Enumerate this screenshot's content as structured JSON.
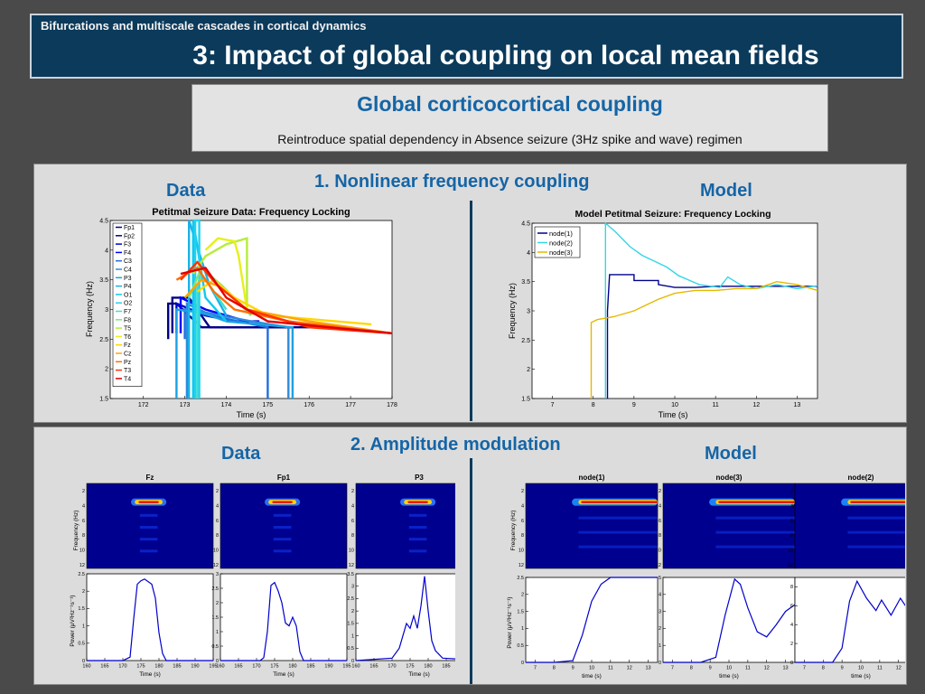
{
  "slide": {
    "kicker": "Bifurcations and multiscale cascades in cortical dynamics",
    "title": "3: Impact of global coupling on local mean fields"
  },
  "intro": {
    "heading": "Global corticocortical coupling",
    "subtext": "Reintroduce spatial dependency in Absence seizure (3Hz spike and wave) regimen"
  },
  "section1": {
    "heading": "1. Nonlinear frequency coupling",
    "data_label": "Data",
    "model_label": "Model"
  },
  "section2": {
    "heading": "2. Amplitude modulation",
    "data_label": "Data",
    "model_label": "Model"
  },
  "colors": {
    "accent": "#1565a6",
    "header_bg": "#0b3a5b",
    "spec_bg": "#00008f"
  },
  "chart_data": [
    {
      "id": "data-freq",
      "type": "line",
      "title": "Petitmal Seizure Data: Frequency Locking",
      "xlabel": "Time (s)",
      "ylabel": "Frequency (Hz)",
      "xlim": [
        171.2,
        178
      ],
      "ylim": [
        1.5,
        4.5
      ],
      "xticks": [
        172,
        173,
        174,
        175,
        176,
        177,
        178
      ],
      "yticks": [
        1.5,
        2,
        2.5,
        3,
        3.5,
        4,
        4.5
      ],
      "legend_position": "top-left",
      "series": [
        {
          "name": "Fp1",
          "color": "#000080",
          "x": [
            172.6,
            172.6,
            172.8,
            173.4,
            175.6
          ],
          "y": [
            2.5,
            3.1,
            3.1,
            2.7,
            2.7
          ]
        },
        {
          "name": "Fp2",
          "color": "#00008b",
          "x": [
            172.7,
            172.7,
            173.1,
            173.6,
            176.3
          ],
          "y": [
            2.6,
            3.2,
            3.2,
            2.7,
            2.7
          ]
        },
        {
          "name": "F3",
          "color": "#0000cd",
          "x": [
            172.8,
            172.8,
            173.5,
            174.2,
            174.8
          ],
          "y": [
            2.6,
            3.1,
            2.9,
            2.8,
            2.8
          ]
        },
        {
          "name": "F4",
          "color": "#0000ff",
          "x": [
            172.9,
            172.9,
            173.5,
            174.5
          ],
          "y": [
            2.6,
            3.2,
            3.0,
            2.8
          ]
        },
        {
          "name": "C3",
          "color": "#1e6fe0",
          "x": [
            173.0,
            173.0,
            173.6,
            175.0,
            175.0
          ],
          "y": [
            2.5,
            3.0,
            2.9,
            2.7,
            1.5
          ]
        },
        {
          "name": "C4",
          "color": "#2e8ade",
          "x": [
            173.05,
            173.05,
            173.5,
            174.6,
            175.5,
            175.5
          ],
          "y": [
            1.5,
            3.1,
            2.95,
            2.8,
            2.7,
            1.5
          ]
        },
        {
          "name": "P3",
          "color": "#1ba1e2",
          "x": [
            172.8,
            172.8,
            173.4,
            174.0,
            175.6,
            175.6
          ],
          "y": [
            1.5,
            3.0,
            2.95,
            2.8,
            2.7,
            1.5
          ]
        },
        {
          "name": "P4",
          "color": "#19b2e8",
          "x": [
            173.1,
            173.1,
            173.6,
            174.0
          ],
          "y": [
            1.5,
            4.5,
            3.4,
            2.9
          ]
        },
        {
          "name": "O1",
          "color": "#10c8ef",
          "x": [
            173.2,
            173.2,
            173.5,
            174.0
          ],
          "y": [
            1.5,
            4.5,
            3.2,
            2.8
          ]
        },
        {
          "name": "O2",
          "color": "#22d2f0",
          "x": [
            173.25,
            173.25,
            173.35,
            173.35
          ],
          "y": [
            1.5,
            4.5,
            4.5,
            1.5
          ]
        },
        {
          "name": "F7",
          "color": "#40e0d0",
          "x": [
            173.3,
            173.3,
            173.4,
            174.0
          ],
          "y": [
            1.5,
            3.4,
            3.6,
            3.0
          ]
        },
        {
          "name": "F8",
          "color": "#7fe57a",
          "x": [
            173.1,
            173.4,
            173.9,
            174.6
          ],
          "y": [
            3.2,
            3.7,
            3.4,
            2.9
          ]
        },
        {
          "name": "T5",
          "color": "#b7ec3c",
          "x": [
            173.2,
            173.5,
            174.0,
            174.5,
            174.5
          ],
          "y": [
            3.6,
            3.9,
            4.1,
            4.2,
            3.0
          ]
        },
        {
          "name": "T6",
          "color": "#e6f01a",
          "x": [
            173.5,
            173.8,
            174.2,
            174.3,
            174.5
          ],
          "y": [
            4.0,
            4.2,
            4.15,
            3.9,
            3.0
          ]
        },
        {
          "name": "Fz",
          "color": "#ffd700",
          "x": [
            173.3,
            173.7,
            174.2,
            175.0,
            177.5
          ],
          "y": [
            3.3,
            3.5,
            3.2,
            2.9,
            2.75
          ]
        },
        {
          "name": "Cz",
          "color": "#ffa500",
          "x": [
            173.0,
            173.4,
            173.8,
            174.5,
            176.0,
            178.0
          ],
          "y": [
            3.2,
            3.5,
            3.4,
            3.0,
            2.8,
            2.6
          ]
        },
        {
          "name": "Pz",
          "color": "#ff6f00",
          "x": [
            172.8,
            173.3,
            173.7,
            174.2,
            175.5,
            178.0
          ],
          "y": [
            3.5,
            3.7,
            3.3,
            3.0,
            2.8,
            2.6
          ]
        },
        {
          "name": "T3",
          "color": "#ff3300",
          "x": [
            172.9,
            173.3,
            173.8,
            174.5,
            176.0,
            178.0
          ],
          "y": [
            3.5,
            3.8,
            3.4,
            3.0,
            2.7,
            2.6
          ]
        },
        {
          "name": "T4",
          "color": "#e00000",
          "x": [
            172.9,
            173.5,
            174.0,
            175.0,
            178.0
          ],
          "y": [
            3.6,
            3.7,
            3.2,
            2.8,
            2.6
          ]
        }
      ]
    },
    {
      "id": "model-freq",
      "type": "line",
      "title": "Model Petitmal Seizure: Frequency Locking",
      "xlabel": "Time (s)",
      "ylabel": "Frequency (Hz)",
      "xlim": [
        6.5,
        13.5
      ],
      "ylim": [
        1.5,
        4.5
      ],
      "xticks": [
        7,
        8,
        9,
        10,
        11,
        12,
        13
      ],
      "yticks": [
        1.5,
        2,
        2.5,
        3,
        3.5,
        4,
        4.5
      ],
      "legend_position": "top-left",
      "series": [
        {
          "name": "node(1)",
          "color": "#00008b",
          "x": [
            8.35,
            8.35,
            8.4,
            9.0,
            9.0,
            9.6,
            9.6,
            10.0,
            10.5,
            11.0,
            13.5
          ],
          "y": [
            1.5,
            3.0,
            3.62,
            3.62,
            3.52,
            3.52,
            3.45,
            3.4,
            3.4,
            3.42,
            3.42
          ]
        },
        {
          "name": "node(2)",
          "color": "#33d6e6",
          "x": [
            8.3,
            8.3,
            8.55,
            8.9,
            9.2,
            9.5,
            9.8,
            10.1,
            10.6,
            11.1,
            11.3,
            11.6,
            12.0,
            12.5,
            13.0,
            13.5
          ],
          "y": [
            1.5,
            4.5,
            4.35,
            4.1,
            3.95,
            3.85,
            3.75,
            3.6,
            3.45,
            3.4,
            3.58,
            3.45,
            3.38,
            3.45,
            3.38,
            3.43
          ]
        },
        {
          "name": "node(3)",
          "color": "#e6b800",
          "x": [
            7.95,
            7.95,
            8.1,
            8.5,
            9.0,
            9.3,
            9.6,
            10.0,
            10.5,
            11.0,
            11.5,
            12.0,
            12.5,
            13.0,
            13.5
          ],
          "y": [
            1.5,
            2.8,
            2.85,
            2.9,
            3.0,
            3.1,
            3.2,
            3.3,
            3.35,
            3.35,
            3.38,
            3.38,
            3.5,
            3.45,
            3.35
          ]
        }
      ]
    },
    {
      "id": "data-power",
      "type": "line",
      "ylabel": "Power (μV²Hz⁻¹s⁻¹)",
      "xlabel": "Time (s)",
      "panels": [
        {
          "title": "Fz",
          "xlim": [
            160,
            195
          ],
          "ylim": [
            0,
            2.5
          ],
          "yticks": [
            0,
            0.5,
            1,
            1.5,
            2,
            2.5
          ],
          "xticks": [
            160,
            165,
            170,
            175,
            180,
            185,
            190,
            195
          ],
          "x": [
            160,
            170,
            172,
            173,
            174,
            175,
            176,
            178,
            179,
            180,
            181,
            182,
            195
          ],
          "y": [
            0,
            0,
            0.1,
            1.2,
            2.2,
            2.3,
            2.35,
            2.2,
            1.8,
            0.8,
            0.2,
            0,
            0
          ]
        },
        {
          "title": "Fp1",
          "xlim": [
            160,
            195
          ],
          "ylim": [
            0,
            3
          ],
          "yticks": [
            0,
            0.5,
            1,
            1.5,
            2,
            2.5,
            3
          ],
          "xticks": [
            160,
            165,
            170,
            175,
            180,
            185,
            190,
            195
          ],
          "x": [
            160,
            171,
            172,
            173,
            174,
            175,
            176,
            177,
            178,
            179,
            180,
            181,
            182,
            183,
            195
          ],
          "y": [
            0,
            0,
            0.1,
            1.0,
            2.6,
            2.7,
            2.4,
            2.0,
            1.3,
            1.2,
            1.5,
            1.2,
            0.3,
            0,
            0
          ]
        },
        {
          "title": "P3",
          "xlim": [
            160,
            195
          ],
          "ylim": [
            0,
            3.5
          ],
          "yticks": [
            0,
            0.5,
            1,
            1.5,
            2,
            2.5,
            3,
            3.5
          ],
          "xticks": [
            160,
            165,
            170,
            175,
            180,
            185,
            190,
            195
          ],
          "x": [
            160,
            170,
            172,
            173,
            174,
            175,
            176,
            177,
            178,
            179,
            180,
            181,
            182,
            184,
            195
          ],
          "y": [
            0,
            0.1,
            0.5,
            1.0,
            1.5,
            1.3,
            1.8,
            1.3,
            2.2,
            3.4,
            2.0,
            0.8,
            0.4,
            0.1,
            0
          ]
        }
      ]
    },
    {
      "id": "model-power",
      "type": "line",
      "ylabel": "Power (μV²Hz⁻¹s⁻¹)",
      "xlabel": "time (s)",
      "panels": [
        {
          "title": "node(1)",
          "xlim": [
            6.5,
            13.5
          ],
          "ylim": [
            0,
            2.5
          ],
          "yticks": [
            0,
            0.5,
            1,
            1.5,
            2,
            2.5
          ],
          "xticks": [
            7,
            8,
            9,
            10,
            11,
            12,
            13
          ],
          "x": [
            6.5,
            8.0,
            9.0,
            9.5,
            10.0,
            10.5,
            11.0,
            12.0,
            13.0,
            13.5
          ],
          "y": [
            0,
            0,
            0.05,
            0.8,
            1.8,
            2.3,
            2.5,
            2.5,
            2.5,
            2.5
          ]
        },
        {
          "title": "node(3)",
          "xlim": [
            6.5,
            13.5
          ],
          "ylim": [
            0,
            5
          ],
          "yticks": [
            0,
            1,
            2,
            3,
            4,
            5
          ],
          "xticks": [
            7,
            8,
            9,
            10,
            11,
            12,
            13
          ],
          "x": [
            6.5,
            8.5,
            9.3,
            9.8,
            10.3,
            10.6,
            11.0,
            11.5,
            12.0,
            12.5,
            13.0,
            13.5
          ],
          "y": [
            0,
            0,
            0.3,
            2.8,
            4.9,
            4.6,
            3.2,
            1.8,
            1.5,
            2.2,
            3.0,
            3.4
          ]
        },
        {
          "title": "node(2)",
          "xlim": [
            6.5,
            13.5
          ],
          "ylim": [
            0,
            9
          ],
          "yticks": [
            0,
            2,
            4,
            6,
            8
          ],
          "xticks": [
            7,
            8,
            9,
            10,
            11,
            12,
            13
          ],
          "x": [
            6.5,
            8.5,
            9.0,
            9.4,
            9.8,
            10.3,
            10.8,
            11.1,
            11.6,
            12.1,
            12.5,
            13.0,
            13.5
          ],
          "y": [
            0,
            0,
            1.5,
            6.5,
            8.6,
            6.8,
            5.5,
            6.6,
            5.0,
            6.8,
            5.6,
            5.0,
            5.2
          ]
        }
      ]
    },
    {
      "id": "spectrograms",
      "type": "heatmap",
      "ylabel": "Frequency (Hz)",
      "xlabel": "time (s)",
      "data_titles": [
        "Fz",
        "Fp1",
        "P3"
      ],
      "model_titles": [
        "node(1)",
        "node(3)",
        "node(2)"
      ],
      "yticks": [
        2,
        4,
        6,
        8,
        10,
        12
      ]
    }
  ]
}
